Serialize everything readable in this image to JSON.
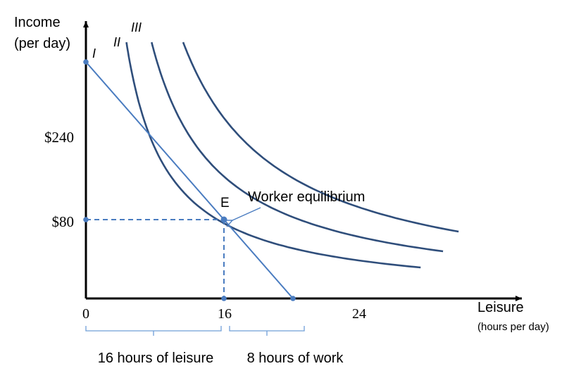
{
  "chart_data": {
    "type": "line",
    "ylabel": "Income",
    "ylabel_sub": "(per day)",
    "xlabel": "Leisure",
    "xlabel_sub": "(hours per day)",
    "x_ticks": [
      "0",
      "16",
      "24"
    ],
    "y_ticks": [
      "$240",
      "$80"
    ],
    "xlim": [
      0,
      35
    ],
    "ylim": [
      0,
      410
    ],
    "series": [
      {
        "name": "I",
        "k": 1220
      },
      {
        "name": "II",
        "k": 1980
      },
      {
        "name": "III",
        "k": 2930
      }
    ],
    "budget_line": {
      "points": [
        [
          0,
          240
        ],
        [
          16,
          80
        ],
        [
          24,
          0
        ]
      ]
    },
    "equilibrium": {
      "label": "E",
      "x": 16,
      "y": 80,
      "annotation": "Worker equilibrium"
    },
    "y_axis_dot": 306,
    "braces": [
      {
        "label": "16 hours of leisure",
        "from": 0,
        "to": 16
      },
      {
        "label": "8 hours of work",
        "from": 16,
        "to": 24
      }
    ]
  },
  "colors": {
    "axis": "#000000",
    "curve": "#2f4e7b",
    "budget": "#4a7cc0",
    "brace": "#6f9fd8",
    "text": "#000000"
  }
}
